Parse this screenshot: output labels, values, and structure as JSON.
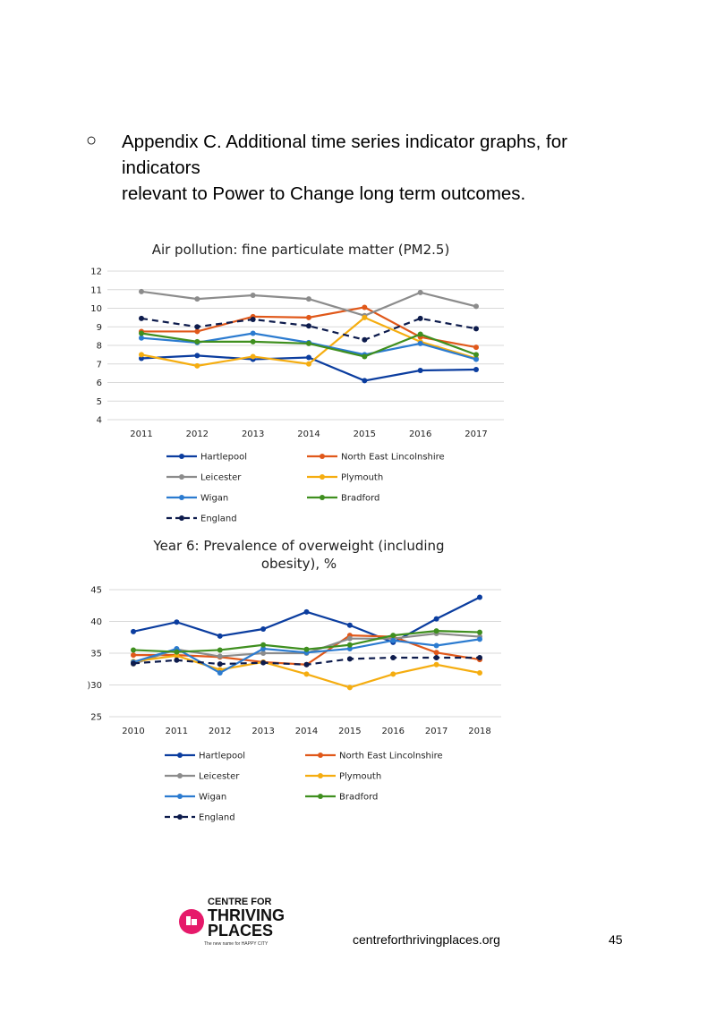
{
  "heading": {
    "bullet": "○",
    "lines": [
      "Appendix C. Additional time series indicator graphs, for",
      "indicators",
      "relevant to Power to Change long term outcomes."
    ]
  },
  "chart_data": [
    {
      "type": "line",
      "title": "Air pollution: fine particulate matter (PM2.5)",
      "x": [
        "2011",
        "2012",
        "2013",
        "2014",
        "2015",
        "2016",
        "2017"
      ],
      "ylim": [
        4,
        12
      ],
      "yticks": [
        4,
        5,
        6,
        7,
        8,
        9,
        10,
        11,
        12
      ],
      "grid": true,
      "legend_position": "bottom",
      "series": [
        {
          "name": "Hartlepool",
          "color": "#0b3d9f",
          "dashed": false,
          "values": [
            7.3,
            7.45,
            7.25,
            7.35,
            6.1,
            6.65,
            6.7
          ]
        },
        {
          "name": "North East Lincolnshire",
          "color": "#e0581a",
          "dashed": false,
          "values": [
            8.75,
            8.75,
            9.55,
            9.5,
            10.05,
            8.45,
            7.9
          ]
        },
        {
          "name": "Leicester",
          "color": "#8c8c8c",
          "dashed": false,
          "values": [
            10.9,
            10.5,
            10.7,
            10.5,
            9.6,
            10.85,
            10.1
          ]
        },
        {
          "name": "Plymouth",
          "color": "#f5ad10",
          "dashed": false,
          "values": [
            7.5,
            6.9,
            7.4,
            7.0,
            9.5,
            8.2,
            7.3
          ]
        },
        {
          "name": "Wigan",
          "color": "#2b7bd0",
          "dashed": false,
          "values": [
            8.4,
            8.15,
            8.65,
            8.15,
            7.5,
            8.1,
            7.25
          ]
        },
        {
          "name": "Bradford",
          "color": "#3f8f1f",
          "dashed": false,
          "values": [
            8.65,
            8.2,
            8.2,
            8.1,
            7.4,
            8.6,
            7.5
          ]
        },
        {
          "name": "England",
          "color": "#0d1b4c",
          "dashed": true,
          "values": [
            9.45,
            9.0,
            9.4,
            9.05,
            8.3,
            9.45,
            8.9
          ]
        }
      ]
    },
    {
      "type": "line",
      "title": "Year 6: Prevalence of overweight (including obesity), %",
      "title_lines": [
        "Year 6: Prevalence of overweight (including",
        "obesity), %"
      ],
      "x": [
        "2010",
        "2011",
        "2012",
        "2013",
        "2014",
        "2015",
        "2016",
        "2017",
        "2018"
      ],
      "ylim": [
        25,
        45
      ],
      "yticks": [
        25,
        30,
        35,
        40,
        45
      ],
      "ytick_labels": [
        "25",
        ")30",
        "35",
        "40",
        "45"
      ],
      "grid": true,
      "legend_position": "bottom",
      "series": [
        {
          "name": "Hartlepool",
          "color": "#0b3d9f",
          "dashed": false,
          "values": [
            38.4,
            39.9,
            37.7,
            38.8,
            41.5,
            39.4,
            36.7,
            40.4,
            43.8
          ]
        },
        {
          "name": "North East Lincolnshire",
          "color": "#e0581a",
          "dashed": false,
          "values": [
            34.7,
            34.7,
            34.4,
            33.6,
            33.2,
            37.8,
            37.6,
            35.1,
            34.0
          ]
        },
        {
          "name": "Leicester",
          "color": "#8c8c8c",
          "dashed": false,
          "values": [
            33.3,
            35.6,
            34.5,
            35.0,
            35.0,
            37.3,
            37.3,
            38.1,
            37.6
          ]
        },
        {
          "name": "Plymouth",
          "color": "#f5ad10",
          "dashed": false,
          "values": [
            33.7,
            34.6,
            32.4,
            33.6,
            31.7,
            29.6,
            31.7,
            33.2,
            31.9
          ]
        },
        {
          "name": "Wigan",
          "color": "#2b7bd0",
          "dashed": false,
          "values": [
            33.6,
            35.7,
            31.9,
            35.7,
            35.1,
            35.7,
            37.0,
            36.2,
            37.2
          ]
        },
        {
          "name": "Bradford",
          "color": "#3f8f1f",
          "dashed": false,
          "values": [
            35.5,
            35.2,
            35.5,
            36.3,
            35.6,
            36.3,
            37.8,
            38.5,
            38.3
          ]
        },
        {
          "name": "England",
          "color": "#0d1b4c",
          "dashed": true,
          "values": [
            33.4,
            33.9,
            33.3,
            33.5,
            33.2,
            34.1,
            34.3,
            34.3,
            34.3
          ]
        }
      ]
    }
  ],
  "footer": {
    "logo": {
      "line1": "CENTRE FOR",
      "line2": "THRIVING",
      "line3": "PLACES",
      "tagline": "The new name for HAPPY CITY",
      "accent": "#e6196a"
    },
    "url": "centreforthrivingplaces.org",
    "page_number": "45"
  }
}
